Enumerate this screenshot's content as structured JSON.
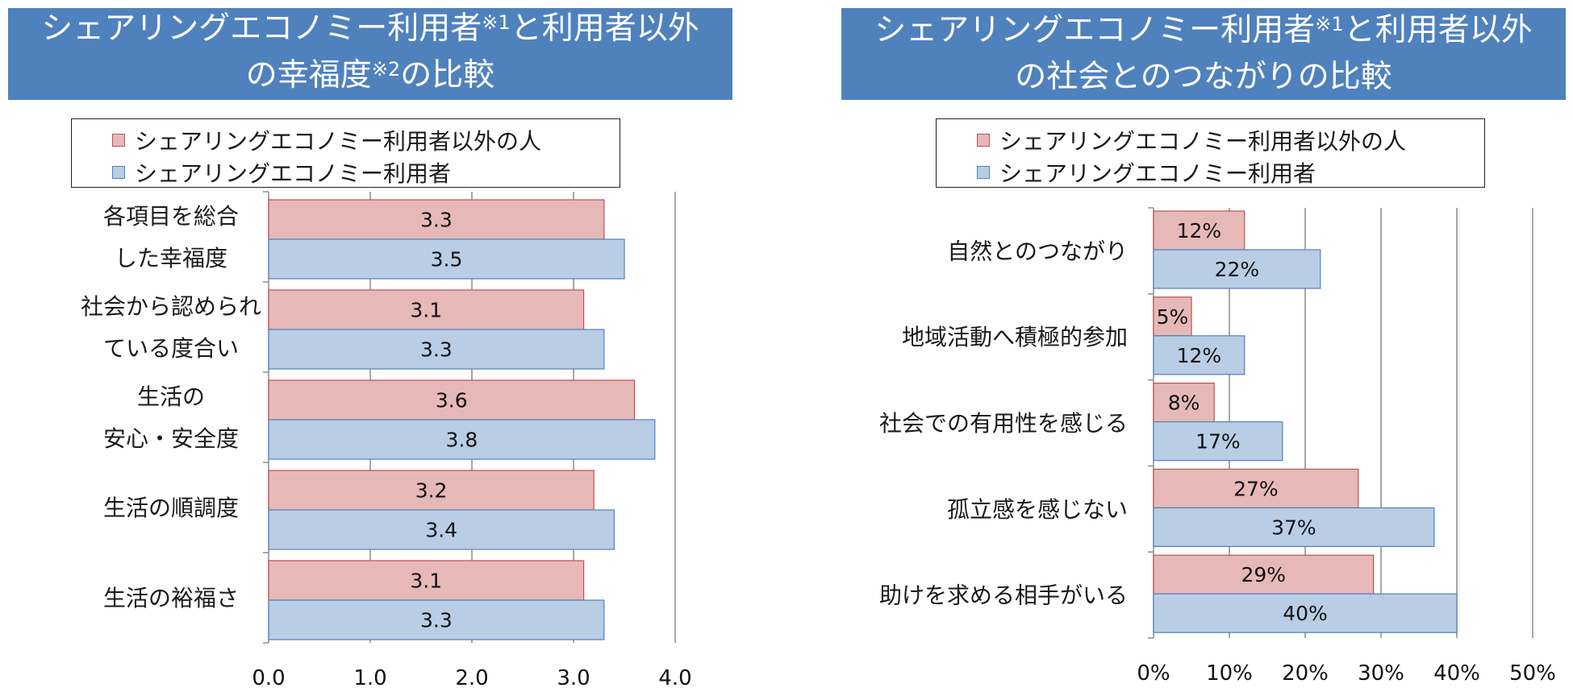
{
  "colors": {
    "banner": "#4f81bd",
    "non_user_fill": "#e6b9b8",
    "non_user_stroke": "#c0504d",
    "user_fill": "#b9cde5",
    "user_stroke": "#4f81bd"
  },
  "chart_data": [
    {
      "type": "bar",
      "orientation": "horizontal",
      "title_line1": "シェアリングエコノミー利用者",
      "title_sup1": "※1",
      "title_line1_tail": "と利用者以外",
      "title_line2": "の幸福度",
      "title_sup2": "※2",
      "title_line2_tail": "の比較",
      "categories": [
        {
          "line1": "各項目を総合",
          "line2": "した幸福度"
        },
        {
          "line1": "社会から認められ",
          "line2": "ている度合い"
        },
        {
          "line1": "生活の",
          "line2": "安心・安全度"
        },
        {
          "line1": "生活の順調度",
          "line2": ""
        },
        {
          "line1": "生活の裕福さ",
          "line2": ""
        }
      ],
      "series": [
        {
          "name": "シェアリングエコノミー利用者以外の人",
          "values": [
            3.3,
            3.1,
            3.6,
            3.2,
            3.1
          ],
          "labels": [
            "3.3",
            "3.1",
            "3.6",
            "3.2",
            "3.1"
          ]
        },
        {
          "name": "シェアリングエコノミー利用者",
          "values": [
            3.5,
            3.3,
            3.8,
            3.4,
            3.3
          ],
          "labels": [
            "3.5",
            "3.3",
            "3.8",
            "3.4",
            "3.3"
          ]
        }
      ],
      "xlim": [
        0,
        4
      ],
      "ticks": [
        0,
        1,
        2,
        3,
        4
      ],
      "tick_labels": [
        "0.0",
        "1.0",
        "2.0",
        "3.0",
        "4.0"
      ],
      "grid": "vertical-major",
      "legend_position": "top"
    },
    {
      "type": "bar",
      "orientation": "horizontal",
      "title_line1": "シェアリングエコノミー利用者",
      "title_sup1": "※1",
      "title_line1_tail": "と利用者以外",
      "title_line2": "の社会とのつながりの比較",
      "title_sup2": "",
      "title_line2_tail": "",
      "categories": [
        {
          "line1": "自然とのつながり",
          "line2": ""
        },
        {
          "line1": "地域活動へ積極的参加",
          "line2": ""
        },
        {
          "line1": "社会での有用性を感じる",
          "line2": ""
        },
        {
          "line1": "孤立感を感じない",
          "line2": ""
        },
        {
          "line1": "助けを求める相手がいる",
          "line2": ""
        }
      ],
      "series": [
        {
          "name": "シェアリングエコノミー利用者以外の人",
          "values": [
            12,
            5,
            8,
            27,
            29
          ],
          "labels": [
            "12%",
            "5%",
            "8%",
            "27%",
            "29%"
          ]
        },
        {
          "name": "シェアリングエコノミー利用者",
          "values": [
            22,
            12,
            17,
            37,
            40
          ],
          "labels": [
            "22%",
            "12%",
            "17%",
            "37%",
            "40%"
          ]
        }
      ],
      "xlim": [
        0,
        50
      ],
      "ticks": [
        0,
        10,
        20,
        30,
        40,
        50
      ],
      "tick_labels": [
        "0%",
        "10%",
        "20%",
        "30%",
        "40%",
        "50%"
      ],
      "grid": "vertical-major",
      "legend_position": "top"
    }
  ]
}
